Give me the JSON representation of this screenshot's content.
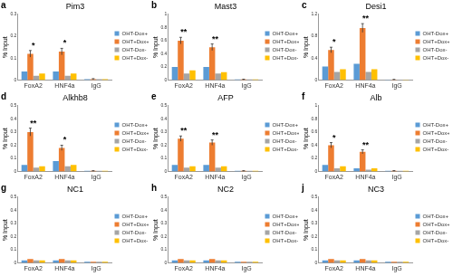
{
  "chart_data": [
    {
      "type": "bar",
      "panel": "a",
      "title": "Pim3",
      "y_label": "% Input",
      "categories": [
        "FoxA2",
        "HNF4a",
        "IgG"
      ],
      "ylim": [
        0,
        0.3
      ],
      "yticks": [
        0,
        0.1,
        0.2,
        0.3
      ],
      "grid": false,
      "legend": "right",
      "series": [
        {
          "name": "OHT-Dox+",
          "color": "#5b9bd5",
          "values": [
            0.04,
            0.04,
            0.005
          ]
        },
        {
          "name": "OHT+Dox+",
          "color": "#ed7d31",
          "values": [
            0.12,
            0.13,
            0.005
          ],
          "errors": [
            0.015,
            0.015,
            0.002
          ]
        },
        {
          "name": "OHT-Dox-",
          "color": "#a5a5a5",
          "values": [
            0.02,
            0.02,
            0.005
          ]
        },
        {
          "name": "OHT+Dox-",
          "color": "#ffc000",
          "values": [
            0.03,
            0.03,
            0.005
          ]
        }
      ],
      "annotations": [
        {
          "category": "FoxA2",
          "text": "*"
        },
        {
          "category": "HNF4a",
          "text": "*"
        }
      ]
    },
    {
      "type": "bar",
      "panel": "b",
      "title": "Mast3",
      "y_label": "% Input",
      "categories": [
        "FoxA2",
        "HNF4a",
        "IgG"
      ],
      "ylim": [
        0,
        1
      ],
      "yticks": [
        0,
        0.2,
        0.4,
        0.6,
        0.8,
        1
      ],
      "grid": false,
      "legend": "right",
      "series": [
        {
          "name": "OHT-Dox+",
          "color": "#5b9bd5",
          "values": [
            0.2,
            0.2,
            0.01
          ]
        },
        {
          "name": "OHT+Dox+",
          "color": "#ed7d31",
          "values": [
            0.6,
            0.5,
            0.01
          ],
          "errors": [
            0.05,
            0.05,
            0.005
          ]
        },
        {
          "name": "OHT-Dox-",
          "color": "#a5a5a5",
          "values": [
            0.1,
            0.1,
            0.01
          ]
        },
        {
          "name": "OHT+Dox-",
          "color": "#ffc000",
          "values": [
            0.15,
            0.12,
            0.01
          ]
        }
      ],
      "annotations": [
        {
          "category": "FoxA2",
          "text": "**"
        },
        {
          "category": "HNF4a",
          "text": "**"
        }
      ]
    },
    {
      "type": "bar",
      "panel": "c",
      "title": "Desi1",
      "y_label": "% Input",
      "categories": [
        "FoxA2",
        "HNF4a",
        "IgG"
      ],
      "ylim": [
        0,
        1.2
      ],
      "yticks": [
        0,
        0.4,
        0.8,
        1.2
      ],
      "grid": false,
      "legend": "right",
      "series": [
        {
          "name": "OHT-Dox+",
          "color": "#5b9bd5",
          "values": [
            0.25,
            0.3,
            0.01
          ]
        },
        {
          "name": "OHT+Dox+",
          "color": "#ed7d31",
          "values": [
            0.55,
            0.95,
            0.01
          ],
          "errors": [
            0.05,
            0.08,
            0.005
          ]
        },
        {
          "name": "OHT-Dox-",
          "color": "#a5a5a5",
          "values": [
            0.15,
            0.15,
            0.01
          ]
        },
        {
          "name": "OHT+Dox-",
          "color": "#ffc000",
          "values": [
            0.2,
            0.2,
            0.01
          ]
        }
      ],
      "annotations": [
        {
          "category": "FoxA2",
          "text": "*"
        },
        {
          "category": "HNF4a",
          "text": "**"
        }
      ]
    },
    {
      "type": "bar",
      "panel": "d",
      "title": "Alkhb8",
      "y_label": "% Input",
      "categories": [
        "FoxA2",
        "HNF4a",
        "IgG"
      ],
      "ylim": [
        0,
        0.5
      ],
      "yticks": [
        0,
        0.1,
        0.2,
        0.3,
        0.4,
        0.5
      ],
      "grid": false,
      "legend": "right",
      "series": [
        {
          "name": "OHT-Dox+",
          "color": "#5b9bd5",
          "values": [
            0.05,
            0.08,
            0.005
          ]
        },
        {
          "name": "OHT+Dox+",
          "color": "#ed7d31",
          "values": [
            0.3,
            0.18,
            0.005
          ],
          "errors": [
            0.03,
            0.02,
            0.002
          ]
        },
        {
          "name": "OHT-Dox-",
          "color": "#a5a5a5",
          "values": [
            0.03,
            0.04,
            0.005
          ]
        },
        {
          "name": "OHT+Dox-",
          "color": "#ffc000",
          "values": [
            0.04,
            0.05,
            0.005
          ]
        }
      ],
      "annotations": [
        {
          "category": "FoxA2",
          "text": "**"
        },
        {
          "category": "HNF4a",
          "text": "*"
        }
      ]
    },
    {
      "type": "bar",
      "panel": "e",
      "title": "AFP",
      "y_label": "% Input",
      "categories": [
        "FoxA2",
        "HNF4a",
        "IgG"
      ],
      "ylim": [
        0,
        0.5
      ],
      "yticks": [
        0,
        0.1,
        0.2,
        0.3,
        0.4,
        0.5
      ],
      "grid": false,
      "legend": "right",
      "series": [
        {
          "name": "OHT-Dox+",
          "color": "#5b9bd5",
          "values": [
            0.05,
            0.05,
            0.005
          ]
        },
        {
          "name": "OHT+Dox+",
          "color": "#ed7d31",
          "values": [
            0.25,
            0.22,
            0.005
          ],
          "errors": [
            0.02,
            0.02,
            0.002
          ]
        },
        {
          "name": "OHT-Dox-",
          "color": "#a5a5a5",
          "values": [
            0.03,
            0.03,
            0.005
          ]
        },
        {
          "name": "OHT+Dox-",
          "color": "#ffc000",
          "values": [
            0.04,
            0.04,
            0.005
          ]
        }
      ],
      "annotations": [
        {
          "category": "FoxA2",
          "text": "**"
        },
        {
          "category": "HNF4a",
          "text": "**"
        }
      ]
    },
    {
      "type": "bar",
      "panel": "f",
      "title": "Alb",
      "y_label": "% Input",
      "categories": [
        "FoxA2",
        "HNF4a",
        "IgG"
      ],
      "ylim": [
        0,
        1
      ],
      "yticks": [
        0,
        0.2,
        0.4,
        0.6,
        0.8,
        1
      ],
      "grid": false,
      "legend": "right",
      "series": [
        {
          "name": "OHT-Dox+",
          "color": "#5b9bd5",
          "values": [
            0.1,
            0.05,
            0.01
          ]
        },
        {
          "name": "OHT+Dox+",
          "color": "#ed7d31",
          "values": [
            0.4,
            0.3,
            0.01
          ],
          "errors": [
            0.04,
            0.03,
            0.005
          ]
        },
        {
          "name": "OHT-Dox-",
          "color": "#a5a5a5",
          "values": [
            0.05,
            0.03,
            0.01
          ]
        },
        {
          "name": "OHT+Dox-",
          "color": "#ffc000",
          "values": [
            0.08,
            0.05,
            0.01
          ]
        }
      ],
      "annotations": [
        {
          "category": "FoxA2",
          "text": "*"
        },
        {
          "category": "HNF4a",
          "text": "**"
        }
      ]
    },
    {
      "type": "bar",
      "panel": "g",
      "title": "NC1",
      "y_label": "% Input",
      "categories": [
        "FoxA2",
        "HNF4a",
        "IgG"
      ],
      "ylim": [
        0,
        0.5
      ],
      "yticks": [
        0,
        0.1,
        0.2,
        0.3,
        0.4,
        0.5
      ],
      "grid": false,
      "legend": "right",
      "series": [
        {
          "name": "OHT-Dox+",
          "color": "#5b9bd5",
          "values": [
            0.02,
            0.02,
            0.01
          ]
        },
        {
          "name": "OHT+Dox+",
          "color": "#ed7d31",
          "values": [
            0.03,
            0.03,
            0.01
          ]
        },
        {
          "name": "OHT-Dox-",
          "color": "#a5a5a5",
          "values": [
            0.02,
            0.02,
            0.01
          ]
        },
        {
          "name": "OHT+Dox-",
          "color": "#ffc000",
          "values": [
            0.02,
            0.02,
            0.01
          ]
        }
      ],
      "annotations": []
    },
    {
      "type": "bar",
      "panel": "h",
      "title": "NC2",
      "y_label": "% Input",
      "categories": [
        "FoxA2",
        "HNF4a",
        "IgG"
      ],
      "ylim": [
        0,
        0.5
      ],
      "yticks": [
        0,
        0.1,
        0.2,
        0.3,
        0.4,
        0.5
      ],
      "grid": false,
      "legend": "right",
      "series": [
        {
          "name": "OHT-Dox+",
          "color": "#5b9bd5",
          "values": [
            0.02,
            0.02,
            0.01
          ]
        },
        {
          "name": "OHT+Dox+",
          "color": "#ed7d31",
          "values": [
            0.03,
            0.03,
            0.01
          ]
        },
        {
          "name": "OHT-Dox-",
          "color": "#a5a5a5",
          "values": [
            0.02,
            0.02,
            0.01
          ]
        },
        {
          "name": "OHT+Dox-",
          "color": "#ffc000",
          "values": [
            0.02,
            0.02,
            0.01
          ]
        }
      ],
      "annotations": []
    },
    {
      "type": "bar",
      "panel": "j",
      "title": "NC3",
      "y_label": "% Input",
      "categories": [
        "FoxA2",
        "HNF4a",
        "IgG"
      ],
      "ylim": [
        0,
        0.5
      ],
      "yticks": [
        0,
        0.1,
        0.2,
        0.3,
        0.4,
        0.5
      ],
      "grid": false,
      "legend": "right",
      "series": [
        {
          "name": "OHT-Dox+",
          "color": "#5b9bd5",
          "values": [
            0.02,
            0.02,
            0.01
          ]
        },
        {
          "name": "OHT+Dox+",
          "color": "#ed7d31",
          "values": [
            0.03,
            0.03,
            0.01
          ]
        },
        {
          "name": "OHT-Dox-",
          "color": "#a5a5a5",
          "values": [
            0.02,
            0.02,
            0.01
          ]
        },
        {
          "name": "OHT+Dox-",
          "color": "#ffc000",
          "values": [
            0.02,
            0.02,
            0.01
          ]
        }
      ],
      "annotations": []
    }
  ]
}
